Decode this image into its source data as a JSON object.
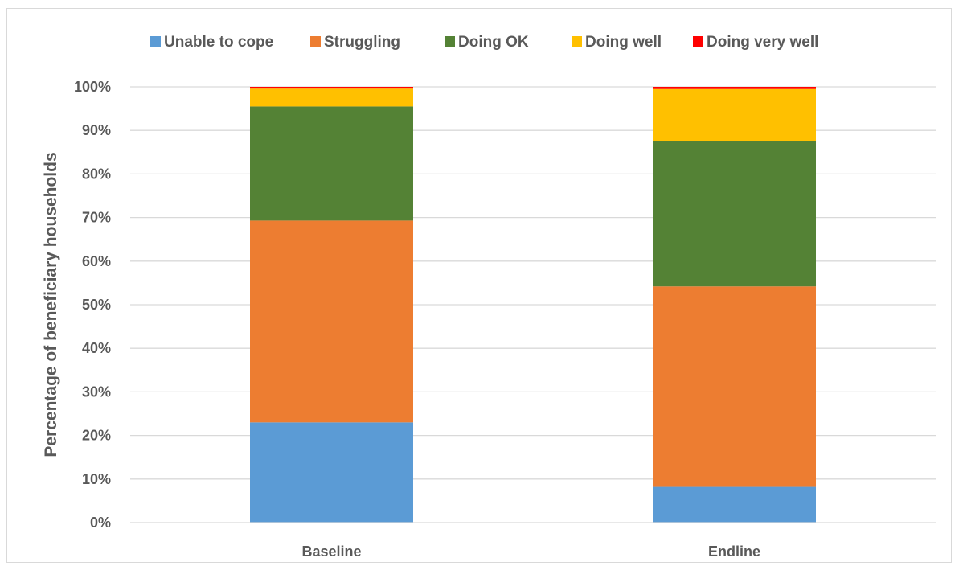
{
  "chart_data": {
    "type": "bar",
    "stacked": true,
    "title": "",
    "xlabel": "",
    "ylabel": "Percentage of beneficiary households",
    "ylim": [
      0,
      100
    ],
    "y_ticks": [
      "0%",
      "10%",
      "20%",
      "30%",
      "40%",
      "50%",
      "60%",
      "70%",
      "80%",
      "90%",
      "100%"
    ],
    "grid": true,
    "legend_position": "top",
    "categories": [
      "Baseline",
      "Endline"
    ],
    "series": [
      {
        "name": "Unable to cope",
        "color": "#5b9bd5",
        "values": [
          23.0,
          8.2
        ]
      },
      {
        "name": "Struggling",
        "color": "#ed7d31",
        "values": [
          46.3,
          46.0
        ]
      },
      {
        "name": "Doing OK",
        "color": "#548235",
        "values": [
          26.2,
          33.4
        ]
      },
      {
        "name": "Doing well",
        "color": "#ffc000",
        "values": [
          4.1,
          11.9
        ]
      },
      {
        "name": "Doing very well",
        "color": "#ff0000",
        "values": [
          0.4,
          0.5
        ]
      }
    ]
  }
}
